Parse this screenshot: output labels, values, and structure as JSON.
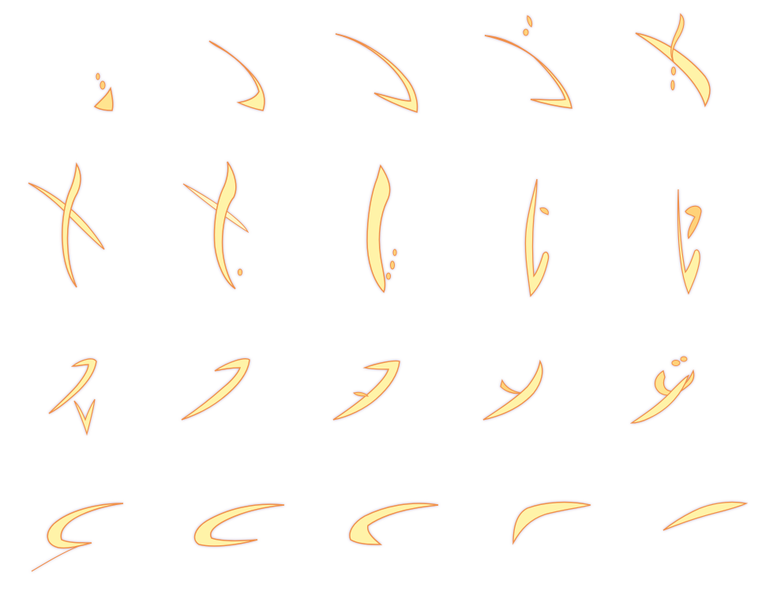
{
  "sprite_sheet": {
    "subject": "slash-effect-animation",
    "columns": 5,
    "rows": 4,
    "frame_count": 20,
    "colors": {
      "core": "#fff7b0",
      "mid": "#ffd27a",
      "edge": "#f0904a",
      "glow": "#b9a7c7",
      "background": "#ffffff"
    }
  }
}
